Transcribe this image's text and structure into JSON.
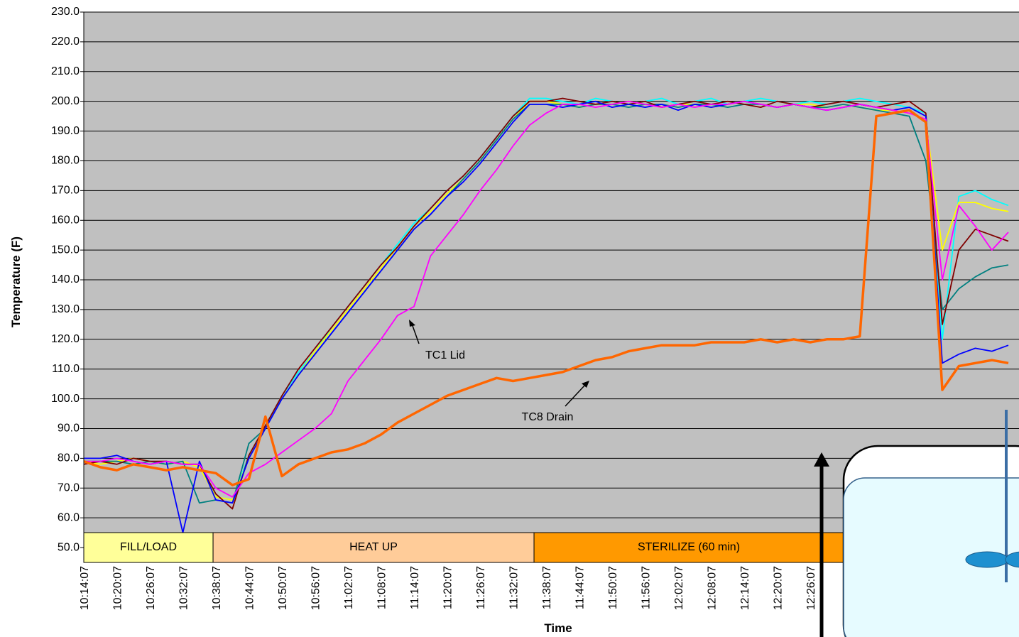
{
  "chart_data": {
    "type": "line",
    "x_label": "Time",
    "y_label": "Temperature (F)",
    "ylim": [
      45,
      230
    ],
    "yticks": [
      {
        "value": 50,
        "label": "50.0"
      },
      {
        "value": 60,
        "label": "60.0"
      },
      {
        "value": 70,
        "label": "70.0"
      },
      {
        "value": 80,
        "label": "80.0"
      },
      {
        "value": 90,
        "label": "90.0"
      },
      {
        "value": 100,
        "label": "100.0"
      },
      {
        "value": 110,
        "label": "110.0"
      },
      {
        "value": 120,
        "label": "120.0"
      },
      {
        "value": 130,
        "label": "130.0"
      },
      {
        "value": 140,
        "label": "140.0"
      },
      {
        "value": 150,
        "label": "150.0"
      },
      {
        "value": 160,
        "label": "160.0"
      },
      {
        "value": 170,
        "label": "170.0"
      },
      {
        "value": 180,
        "label": "180.0"
      },
      {
        "value": 190,
        "label": "190.0"
      },
      {
        "value": 200,
        "label": "200.0"
      },
      {
        "value": 210,
        "label": "210.0"
      },
      {
        "value": 220,
        "label": "220.0"
      },
      {
        "value": 230,
        "label": "230.0"
      }
    ],
    "grid": true,
    "categories": [
      "10:14:07",
      null,
      "10:20:07",
      null,
      "10:26:07",
      null,
      "10:32:07",
      null,
      "10:38:07",
      null,
      "10:44:07",
      null,
      "10:50:07",
      null,
      "10:56:07",
      null,
      "11:02:07",
      null,
      "11:08:07",
      null,
      "11:14:07",
      null,
      "11:20:07",
      null,
      "11:26:07",
      null,
      "11:32:07",
      null,
      "11:38:07",
      null,
      "11:44:07",
      null,
      "11:50:07",
      null,
      "11:56:07",
      null,
      "12:02:07",
      null,
      "12:08:07",
      null,
      "12:14:07",
      null,
      "12:20:07",
      null,
      "12:26:07",
      null,
      null,
      null,
      null,
      null,
      null,
      null,
      null,
      null,
      null,
      null,
      null
    ],
    "phases": [
      {
        "label": "FILL/LOAD",
        "from": 0,
        "to": 7.83,
        "color": "#ffff99"
      },
      {
        "label": "HEAT UP",
        "from": 7.83,
        "to": 27.27,
        "color": "#ffcc99"
      },
      {
        "label": "STERILIZE (60 min)",
        "from": 27.27,
        "to": 56.6,
        "color": "#ff9900"
      }
    ],
    "series": [
      {
        "color": "#00ffff",
        "values": [
          79,
          79,
          80,
          79,
          78,
          79,
          78,
          78,
          67,
          66,
          81,
          91,
          101,
          109,
          116,
          124,
          131,
          138,
          145,
          152,
          159,
          164,
          170,
          175,
          181,
          188,
          195,
          201,
          201,
          200,
          199,
          201,
          200,
          199,
          200,
          201,
          199,
          200,
          201,
          199,
          200,
          201,
          200,
          199,
          200,
          199,
          200,
          201,
          200,
          199,
          198,
          196,
          120,
          168,
          170,
          167,
          165
        ]
      },
      {
        "color": "#ffff00",
        "values": [
          79,
          78,
          79,
          80,
          79,
          78,
          79,
          77,
          67,
          66,
          80,
          90,
          100,
          108,
          116,
          123,
          130,
          137,
          144,
          151,
          158,
          163,
          169,
          174,
          180,
          187,
          194,
          200,
          200,
          199,
          198,
          199,
          199,
          200,
          199,
          198,
          199,
          199,
          198,
          199,
          200,
          199,
          198,
          199,
          199,
          198,
          199,
          198,
          197,
          197,
          196,
          194,
          150,
          166,
          166,
          164,
          163
        ]
      },
      {
        "color": "#008080",
        "values": [
          79,
          79,
          79,
          78,
          79,
          78,
          79,
          65,
          66,
          65,
          85,
          90,
          100,
          108,
          115,
          122,
          129,
          136,
          143,
          150,
          157,
          162,
          168,
          174,
          180,
          187,
          194,
          199,
          199,
          199,
          198,
          199,
          199,
          198,
          199,
          199,
          198,
          199,
          199,
          198,
          199,
          199,
          198,
          199,
          198,
          198,
          199,
          198,
          197,
          196,
          195,
          180,
          130,
          137,
          141,
          144,
          145
        ]
      },
      {
        "color": "#800000",
        "values": [
          78,
          79,
          78,
          80,
          79,
          79,
          78,
          78,
          68,
          63,
          81,
          91,
          101,
          110,
          117,
          124,
          131,
          138,
          145,
          151,
          158,
          164,
          170,
          175,
          181,
          188,
          195,
          200,
          200,
          201,
          200,
          199,
          200,
          199,
          200,
          198,
          199,
          200,
          199,
          200,
          199,
          198,
          200,
          199,
          198,
          199,
          200,
          199,
          198,
          199,
          200,
          196,
          125,
          150,
          157,
          155,
          153
        ]
      },
      {
        "color": "#0000ff",
        "values": [
          80,
          80,
          81,
          79,
          78,
          79,
          55,
          79,
          66,
          65,
          80,
          90,
          100,
          108,
          115,
          122,
          129,
          136,
          143,
          150,
          157,
          162,
          168,
          173,
          179,
          186,
          193,
          199,
          199,
          198,
          199,
          200,
          198,
          199,
          198,
          199,
          197,
          199,
          198,
          199,
          200,
          199,
          198,
          199,
          198,
          197,
          198,
          199,
          198,
          197,
          198,
          195,
          112,
          115,
          117,
          116,
          118
        ]
      },
      {
        "name": "TC1 Lid",
        "color": "#ff00ff",
        "values": [
          79,
          79,
          80,
          79,
          78,
          79,
          78,
          78,
          70,
          67,
          75,
          78,
          82,
          86,
          90,
          95,
          106,
          113,
          120,
          128,
          131,
          148,
          155,
          162,
          170,
          177,
          185,
          192,
          196,
          199,
          199,
          198,
          199,
          200,
          199,
          198,
          199,
          198,
          199,
          199,
          200,
          199,
          198,
          199,
          198,
          197,
          198,
          199,
          198,
          197,
          196,
          194,
          140,
          165,
          158,
          150,
          156
        ]
      },
      {
        "name": "TC8 Drain",
        "color": "#ff6600",
        "values": [
          79,
          77,
          76,
          78,
          77,
          76,
          77,
          76,
          75,
          71,
          73,
          94,
          74,
          78,
          80,
          82,
          83,
          85,
          88,
          92,
          95,
          98,
          101,
          103,
          105,
          107,
          106,
          107,
          108,
          109,
          111,
          113,
          114,
          116,
          117,
          118,
          118,
          118,
          119,
          119,
          119,
          120,
          119,
          120,
          119,
          120,
          120,
          121,
          195,
          196,
          197,
          193,
          103,
          111,
          112,
          113,
          112
        ]
      }
    ]
  }
}
